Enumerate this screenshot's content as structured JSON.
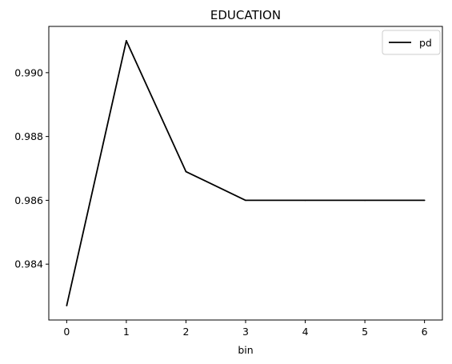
{
  "chart_data": {
    "type": "line",
    "title": "EDUCATION",
    "xlabel": "bin",
    "ylabel": "",
    "x": [
      0,
      1,
      2,
      3,
      4,
      5,
      6
    ],
    "series": [
      {
        "name": "pd",
        "values": [
          0.9827,
          0.991,
          0.9869,
          0.986,
          0.986,
          0.986,
          0.986
        ],
        "color": "#000000"
      }
    ],
    "xlim": [
      -0.3,
      6.3
    ],
    "ylim": [
      0.98225,
      0.99145
    ],
    "xticks": [
      0,
      1,
      2,
      3,
      4,
      5,
      6
    ],
    "xtick_labels": [
      "0",
      "1",
      "2",
      "3",
      "4",
      "5",
      "6"
    ],
    "yticks": [
      0.984,
      0.986,
      0.988,
      0.99
    ],
    "ytick_labels": [
      "0.984",
      "0.986",
      "0.988",
      "0.990"
    ],
    "grid": false,
    "legend": "top-right"
  }
}
